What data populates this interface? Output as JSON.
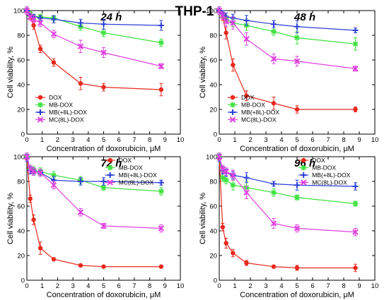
{
  "figure": {
    "title": "THP-1"
  },
  "chart_data": [
    {
      "type": "line",
      "title": "24 h",
      "xlabel": "Concentration of doxorubicin, μM",
      "ylabel": "Cell viability, %",
      "xlim": [
        0,
        10
      ],
      "ylim": [
        0,
        100
      ],
      "xticks": [
        0,
        1,
        2,
        3,
        4,
        5,
        6,
        7,
        8,
        9,
        10
      ],
      "yticks": [
        0,
        20,
        40,
        60,
        80,
        100
      ],
      "legend_position": "bottom-left",
      "x": [
        0,
        0.22,
        0.44,
        0.88,
        1.75,
        3.5,
        5,
        8.75
      ],
      "series": [
        {
          "name": "DOX",
          "color": "#e8281c",
          "marker": "circle",
          "values": [
            100,
            96,
            88,
            69,
            58,
            41,
            38,
            36
          ],
          "errors": [
            3,
            3,
            3,
            3,
            3,
            5,
            3,
            5
          ]
        },
        {
          "name": "MB-DOX",
          "color": "#3fe23f",
          "marker": "asterisk",
          "values": [
            100,
            97,
            95,
            95,
            94,
            87,
            82,
            74
          ],
          "errors": [
            3,
            2,
            2,
            2,
            2,
            3,
            3,
            3
          ]
        },
        {
          "name": "MB(+8L)-DOX",
          "color": "#2b3fd6",
          "marker": "plus",
          "values": [
            100,
            96,
            95,
            94,
            93,
            90,
            89,
            88
          ],
          "errors": [
            3,
            2,
            2,
            2,
            3,
            3,
            4,
            4
          ]
        },
        {
          "name": "MC(8L)-DOX",
          "color": "#e041e0",
          "marker": "x",
          "values": [
            100,
            95,
            93,
            90,
            81,
            71,
            66,
            55
          ],
          "errors": [
            3,
            3,
            3,
            3,
            3,
            5,
            4,
            2
          ]
        }
      ]
    },
    {
      "type": "line",
      "title": "48 h",
      "xlabel": "Concentration of doxorubicin, μM",
      "ylabel": "Cell viability, %",
      "xlim": [
        0,
        10
      ],
      "ylim": [
        0,
        100
      ],
      "xticks": [
        0,
        1,
        2,
        3,
        4,
        5,
        6,
        7,
        8,
        9,
        10
      ],
      "yticks": [
        0,
        20,
        40,
        60,
        80,
        100
      ],
      "legend_position": "bottom-left",
      "x": [
        0,
        0.22,
        0.44,
        0.88,
        1.75,
        3.5,
        5,
        8.75
      ],
      "series": [
        {
          "name": "DOX",
          "color": "#e8281c",
          "marker": "circle",
          "values": [
            100,
            95,
            82,
            56,
            31,
            25,
            20,
            20
          ],
          "errors": [
            3,
            3,
            5,
            5,
            4,
            5,
            3,
            2
          ]
        },
        {
          "name": "MB-DOX",
          "color": "#3fe23f",
          "marker": "asterisk",
          "values": [
            100,
            97,
            93,
            90,
            88,
            83,
            78,
            73
          ],
          "errors": [
            3,
            3,
            3,
            3,
            4,
            3,
            5,
            5
          ]
        },
        {
          "name": "MB(+8L)-DOX",
          "color": "#2b3fd6",
          "marker": "plus",
          "values": [
            100,
            98,
            95,
            94,
            92,
            89,
            87,
            84
          ],
          "errors": [
            3,
            2,
            3,
            3,
            4,
            3,
            5,
            2
          ]
        },
        {
          "name": "MC(8L)-DOX",
          "color": "#e041e0",
          "marker": "x",
          "values": [
            100,
            96,
            91,
            90,
            77,
            61,
            59,
            53
          ],
          "errors": [
            3,
            3,
            4,
            5,
            5,
            4,
            4,
            2
          ]
        }
      ]
    },
    {
      "type": "line",
      "title": "72 h",
      "xlabel": "Concentration of doxorubicin, μM",
      "ylabel": "Cell viability, %",
      "xlim": [
        0,
        10
      ],
      "ylim": [
        0,
        100
      ],
      "xticks": [
        0,
        1,
        2,
        3,
        4,
        5,
        6,
        7,
        8,
        9,
        10
      ],
      "yticks": [
        0,
        20,
        40,
        60,
        80,
        100
      ],
      "legend_position": "top-right",
      "x": [
        0,
        0.22,
        0.44,
        0.88,
        1.75,
        3.5,
        5,
        8.75
      ],
      "series": [
        {
          "name": "DOX",
          "color": "#e8281c",
          "marker": "circle",
          "values": [
            99,
            66,
            49,
            26,
            17,
            12,
            11,
            11
          ],
          "errors": [
            3,
            3,
            4,
            5,
            1,
            1,
            1,
            1
          ]
        },
        {
          "name": "MB-DOX",
          "color": "#3fe23f",
          "marker": "asterisk",
          "values": [
            100,
            90,
            89,
            88,
            85,
            81,
            75,
            72
          ],
          "errors": [
            3,
            3,
            3,
            3,
            3,
            3,
            2,
            3
          ]
        },
        {
          "name": "MB(+8L)-DOX",
          "color": "#2b3fd6",
          "marker": "plus",
          "values": [
            99,
            89,
            88,
            87,
            81,
            80,
            80,
            79
          ],
          "errors": [
            3,
            3,
            3,
            3,
            3,
            3,
            3,
            2
          ]
        },
        {
          "name": "MC(8L)-DOX",
          "color": "#e041e0",
          "marker": "x",
          "values": [
            100,
            90,
            88,
            87,
            77,
            55,
            44,
            42
          ],
          "errors": [
            3,
            3,
            3,
            3,
            3,
            3,
            2,
            3
          ]
        }
      ]
    },
    {
      "type": "line",
      "title": "96 h",
      "xlabel": "Concentration of doxorubicin, μM",
      "ylabel": "Cell viability, %",
      "xlim": [
        0,
        10
      ],
      "ylim": [
        0,
        100
      ],
      "xticks": [
        0,
        1,
        2,
        3,
        4,
        5,
        6,
        7,
        8,
        9,
        10
      ],
      "yticks": [
        0,
        20,
        40,
        60,
        80,
        100
      ],
      "legend_position": "top-right",
      "x": [
        0,
        0.22,
        0.44,
        0.88,
        1.75,
        3.5,
        5,
        8.75
      ],
      "series": [
        {
          "name": "DOX",
          "color": "#e8281c",
          "marker": "circle",
          "values": [
            99,
            43,
            30,
            22,
            14,
            11,
            10,
            10
          ],
          "errors": [
            3,
            3,
            4,
            3,
            2,
            1,
            2,
            3
          ]
        },
        {
          "name": "MB-DOX",
          "color": "#3fe23f",
          "marker": "asterisk",
          "values": [
            100,
            83,
            81,
            77,
            75,
            71,
            67,
            62
          ],
          "errors": [
            3,
            3,
            3,
            4,
            5,
            3,
            2,
            2
          ]
        },
        {
          "name": "MB(+8L)-DOX",
          "color": "#2b3fd6",
          "marker": "plus",
          "values": [
            99,
            89,
            87,
            85,
            83,
            78,
            77,
            76
          ],
          "errors": [
            3,
            3,
            3,
            3,
            4,
            2,
            4,
            3
          ]
        },
        {
          "name": "MC(8L)-DOX",
          "color": "#e041e0",
          "marker": "x",
          "values": [
            100,
            90,
            88,
            85,
            71,
            46,
            42,
            39
          ],
          "errors": [
            3,
            3,
            3,
            4,
            5,
            4,
            3,
            3
          ]
        }
      ]
    }
  ]
}
